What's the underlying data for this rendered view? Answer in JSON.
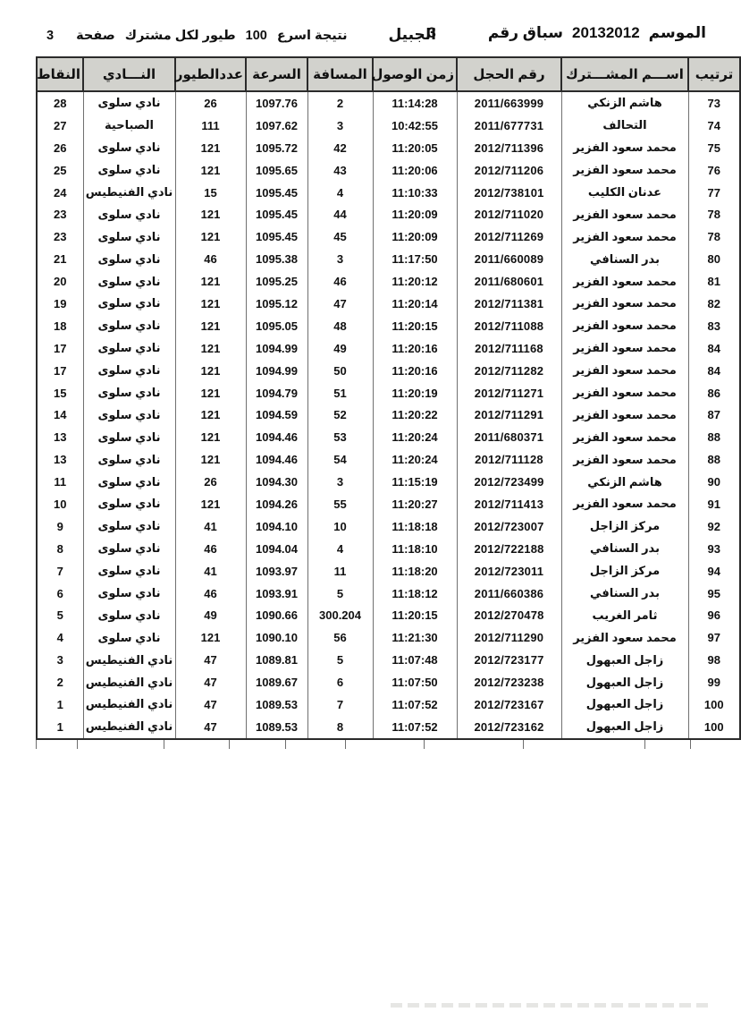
{
  "header": {
    "season_label": "الموسم",
    "season_value": "20132012",
    "race_label": "سباق رقم",
    "race_number": "3",
    "location": "الجبيل",
    "result_label": "نتيجة اسرع",
    "result_count": "100",
    "per_participant": "طيور لكل مشترك",
    "page_label": "صفحة",
    "page_number": "3"
  },
  "table": {
    "columns": [
      {
        "key": "rank",
        "label": "ترتيب"
      },
      {
        "key": "name",
        "label": "اســـم المشـــترك"
      },
      {
        "key": "ring",
        "label": "رقم الحجل"
      },
      {
        "key": "arrival",
        "label": "زمن الوصول"
      },
      {
        "key": "distance",
        "label": "المسافة"
      },
      {
        "key": "speed",
        "label": "السرعة"
      },
      {
        "key": "pigeons",
        "label": "عددالطيور"
      },
      {
        "key": "club",
        "label": "النـــادي"
      },
      {
        "key": "points",
        "label": "النقاط"
      }
    ],
    "rows": [
      {
        "rank": "73",
        "name": "هاشم الزنكي",
        "ring": "2011/663999",
        "arrival": "11:14:28",
        "distance": "2",
        "speed": "1097.76",
        "pigeons": "26",
        "club": "نادي سلوى",
        "points": "28"
      },
      {
        "rank": "74",
        "name": "التحالف",
        "ring": "2011/677731",
        "arrival": "10:42:55",
        "distance": "3",
        "speed": "1097.62",
        "pigeons": "111",
        "club": "الصباحية",
        "points": "27"
      },
      {
        "rank": "75",
        "name": "محمد سعود الفزير",
        "ring": "2012/711396",
        "arrival": "11:20:05",
        "distance": "42",
        "speed": "1095.72",
        "pigeons": "121",
        "club": "نادي سلوى",
        "points": "26"
      },
      {
        "rank": "76",
        "name": "محمد سعود الفزير",
        "ring": "2012/711206",
        "arrival": "11:20:06",
        "distance": "43",
        "speed": "1095.65",
        "pigeons": "121",
        "club": "نادي سلوى",
        "points": "25"
      },
      {
        "rank": "77",
        "name": "عدنان الكليب",
        "ring": "2012/738101",
        "arrival": "11:10:33",
        "distance": "4",
        "speed": "1095.45",
        "pigeons": "15",
        "club": "نادي الفنيطيس",
        "points": "24"
      },
      {
        "rank": "78",
        "name": "محمد سعود الفزير",
        "ring": "2012/711020",
        "arrival": "11:20:09",
        "distance": "44",
        "speed": "1095.45",
        "pigeons": "121",
        "club": "نادي سلوى",
        "points": "23"
      },
      {
        "rank": "78",
        "name": "محمد سعود الفزير",
        "ring": "2012/711269",
        "arrival": "11:20:09",
        "distance": "45",
        "speed": "1095.45",
        "pigeons": "121",
        "club": "نادي سلوى",
        "points": "23"
      },
      {
        "rank": "80",
        "name": "بدر السنافي",
        "ring": "2011/660089",
        "arrival": "11:17:50",
        "distance": "3",
        "speed": "1095.38",
        "pigeons": "46",
        "club": "نادي سلوى",
        "points": "21"
      },
      {
        "rank": "81",
        "name": "محمد سعود الفزير",
        "ring": "2011/680601",
        "arrival": "11:20:12",
        "distance": "46",
        "speed": "1095.25",
        "pigeons": "121",
        "club": "نادي سلوى",
        "points": "20"
      },
      {
        "rank": "82",
        "name": "محمد سعود الفزير",
        "ring": "2012/711381",
        "arrival": "11:20:14",
        "distance": "47",
        "speed": "1095.12",
        "pigeons": "121",
        "club": "نادي سلوى",
        "points": "19"
      },
      {
        "rank": "83",
        "name": "محمد سعود الفزير",
        "ring": "2012/711088",
        "arrival": "11:20:15",
        "distance": "48",
        "speed": "1095.05",
        "pigeons": "121",
        "club": "نادي سلوى",
        "points": "18"
      },
      {
        "rank": "84",
        "name": "محمد سعود الفزير",
        "ring": "2012/711168",
        "arrival": "11:20:16",
        "distance": "49",
        "speed": "1094.99",
        "pigeons": "121",
        "club": "نادي سلوى",
        "points": "17"
      },
      {
        "rank": "84",
        "name": "محمد سعود الفزير",
        "ring": "2012/711282",
        "arrival": "11:20:16",
        "distance": "50",
        "speed": "1094.99",
        "pigeons": "121",
        "club": "نادي سلوى",
        "points": "17"
      },
      {
        "rank": "86",
        "name": "محمد سعود الفزير",
        "ring": "2012/711271",
        "arrival": "11:20:19",
        "distance": "51",
        "speed": "1094.79",
        "pigeons": "121",
        "club": "نادي سلوى",
        "points": "15"
      },
      {
        "rank": "87",
        "name": "محمد سعود الفزير",
        "ring": "2012/711291",
        "arrival": "11:20:22",
        "distance": "52",
        "speed": "1094.59",
        "pigeons": "121",
        "club": "نادي سلوى",
        "points": "14"
      },
      {
        "rank": "88",
        "name": "محمد سعود الفزير",
        "ring": "2011/680371",
        "arrival": "11:20:24",
        "distance": "53",
        "speed": "1094.46",
        "pigeons": "121",
        "club": "نادي سلوى",
        "points": "13"
      },
      {
        "rank": "88",
        "name": "محمد سعود الفزير",
        "ring": "2012/711128",
        "arrival": "11:20:24",
        "distance": "54",
        "speed": "1094.46",
        "pigeons": "121",
        "club": "نادي سلوى",
        "points": "13"
      },
      {
        "rank": "90",
        "name": "هاشم الزنكي",
        "ring": "2012/723499",
        "arrival": "11:15:19",
        "distance": "3",
        "speed": "1094.30",
        "pigeons": "26",
        "club": "نادي سلوى",
        "points": "11"
      },
      {
        "rank": "91",
        "name": "محمد سعود الفزير",
        "ring": "2012/711413",
        "arrival": "11:20:27",
        "distance": "55",
        "speed": "1094.26",
        "pigeons": "121",
        "club": "نادي سلوى",
        "points": "10"
      },
      {
        "rank": "92",
        "name": "مركز الزاجل",
        "ring": "2012/723007",
        "arrival": "11:18:18",
        "distance": "10",
        "speed": "1094.10",
        "pigeons": "41",
        "club": "نادي سلوى",
        "points": "9"
      },
      {
        "rank": "93",
        "name": "بدر السنافي",
        "ring": "2012/722188",
        "arrival": "11:18:10",
        "distance": "4",
        "speed": "1094.04",
        "pigeons": "46",
        "club": "نادي سلوى",
        "points": "8"
      },
      {
        "rank": "94",
        "name": "مركز الزاجل",
        "ring": "2012/723011",
        "arrival": "11:18:20",
        "distance": "11",
        "speed": "1093.97",
        "pigeons": "41",
        "club": "نادي سلوى",
        "points": "7"
      },
      {
        "rank": "95",
        "name": "بدر السنافي",
        "ring": "2011/660386",
        "arrival": "11:18:12",
        "distance": "5",
        "speed": "1093.91",
        "pigeons": "46",
        "club": "نادي سلوى",
        "points": "6"
      },
      {
        "rank": "96",
        "name": "ثامر الغريب",
        "ring": "2012/270478",
        "arrival": "11:20:15",
        "distance": "300.204",
        "speed": "1090.66",
        "pigeons": "49",
        "club": "نادي سلوى",
        "points": "5"
      },
      {
        "rank": "97",
        "name": "محمد سعود الفزير",
        "ring": "2012/711290",
        "arrival": "11:21:30",
        "distance": "56",
        "speed": "1090.10",
        "pigeons": "121",
        "club": "نادي سلوى",
        "points": "4"
      },
      {
        "rank": "98",
        "name": "زاجل العبهول",
        "ring": "2012/723177",
        "arrival": "11:07:48",
        "distance": "5",
        "speed": "1089.81",
        "pigeons": "47",
        "club": "نادي الفنيطيس",
        "points": "3"
      },
      {
        "rank": "99",
        "name": "زاجل العبهول",
        "ring": "2012/723238",
        "arrival": "11:07:50",
        "distance": "6",
        "speed": "1089.67",
        "pigeons": "47",
        "club": "نادي الفنيطيس",
        "points": "2"
      },
      {
        "rank": "100",
        "name": "زاجل العبهول",
        "ring": "2012/723167",
        "arrival": "11:07:52",
        "distance": "7",
        "speed": "1089.53",
        "pigeons": "47",
        "club": "نادي الفنيطيس",
        "points": "1"
      },
      {
        "rank": "100",
        "name": "زاجل العبهول",
        "ring": "2012/723162",
        "arrival": "11:07:52",
        "distance": "8",
        "speed": "1089.53",
        "pigeons": "47",
        "club": "نادي الفنيطيس",
        "points": "1"
      }
    ]
  },
  "colors": {
    "header_bg": "#d2d2cd",
    "border_dark": "#2b2b2b",
    "border_light": "#707070",
    "text": "#111111"
  }
}
